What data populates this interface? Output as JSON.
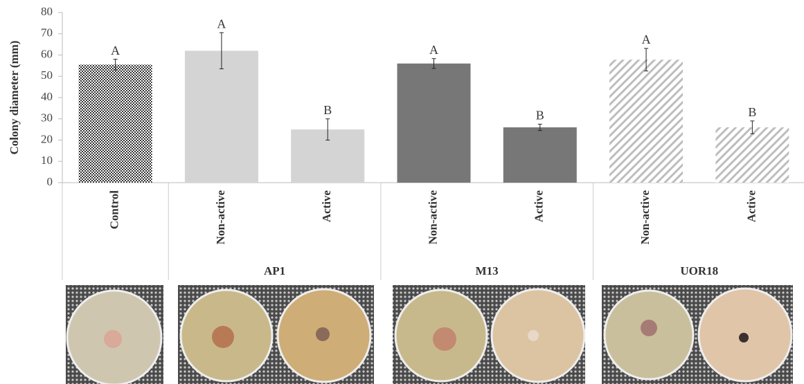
{
  "chart_data": {
    "type": "bar",
    "y_label": "Colony diameter (mm)",
    "categories": [
      "Control",
      "Non-active",
      "Active",
      "Non-active",
      "Active",
      "Non-active",
      "Active"
    ],
    "groups": [
      "AP1",
      "M13",
      "UOR18"
    ],
    "values": [
      55.5,
      62,
      25,
      56,
      26,
      57.8,
      26
    ],
    "errors": [
      2.5,
      8.5,
      5,
      2.3,
      1.5,
      5.3,
      3
    ],
    "letters": [
      "A",
      "A",
      "B",
      "A",
      "B",
      "A",
      "B"
    ],
    "fills": [
      "checker",
      "#d4d4d4",
      "#d4d4d4",
      "#777777",
      "#777777",
      "hatch",
      "hatch"
    ],
    "ylim": [
      0,
      80
    ],
    "yticks": [
      0,
      10,
      20,
      30,
      40,
      50,
      60,
      70,
      80
    ]
  }
}
